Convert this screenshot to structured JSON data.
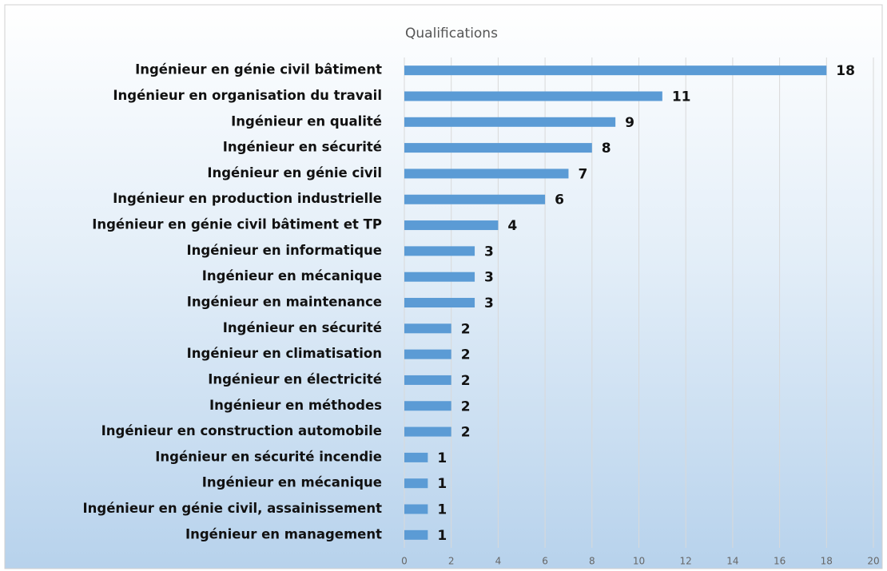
{
  "chart_data": {
    "type": "bar",
    "orientation": "horizontal",
    "title": "Qualifications",
    "categories": [
      "Ingénieur en génie civil bâtiment",
      "Ingénieur en organisation du travail",
      "Ingénieur en qualité",
      "Ingénieur en sécurité",
      "Ingénieur en génie civil",
      "Ingénieur en production industrielle",
      "Ingénieur en génie civil bâtiment et TP",
      "Ingénieur en informatique",
      "Ingénieur en mécanique",
      "Ingénieur en maintenance",
      "Ingénieur en sécurité",
      "Ingénieur en climatisation",
      "Ingénieur en électricité",
      "Ingénieur en méthodes",
      "Ingénieur en construction automobile",
      "Ingénieur en sécurité incendie",
      "Ingénieur en mécanique",
      "Ingénieur en génie civil, assainissement",
      "Ingénieur en management"
    ],
    "values": [
      18,
      11,
      9,
      8,
      7,
      6,
      4,
      3,
      3,
      3,
      2,
      2,
      2,
      2,
      2,
      1,
      1,
      1,
      1
    ],
    "color": "#5b9bd5",
    "xlim": [
      0,
      20
    ],
    "xticks": [
      0,
      2,
      4,
      6,
      8,
      10,
      12,
      14,
      16,
      18,
      20
    ],
    "grid": true
  }
}
